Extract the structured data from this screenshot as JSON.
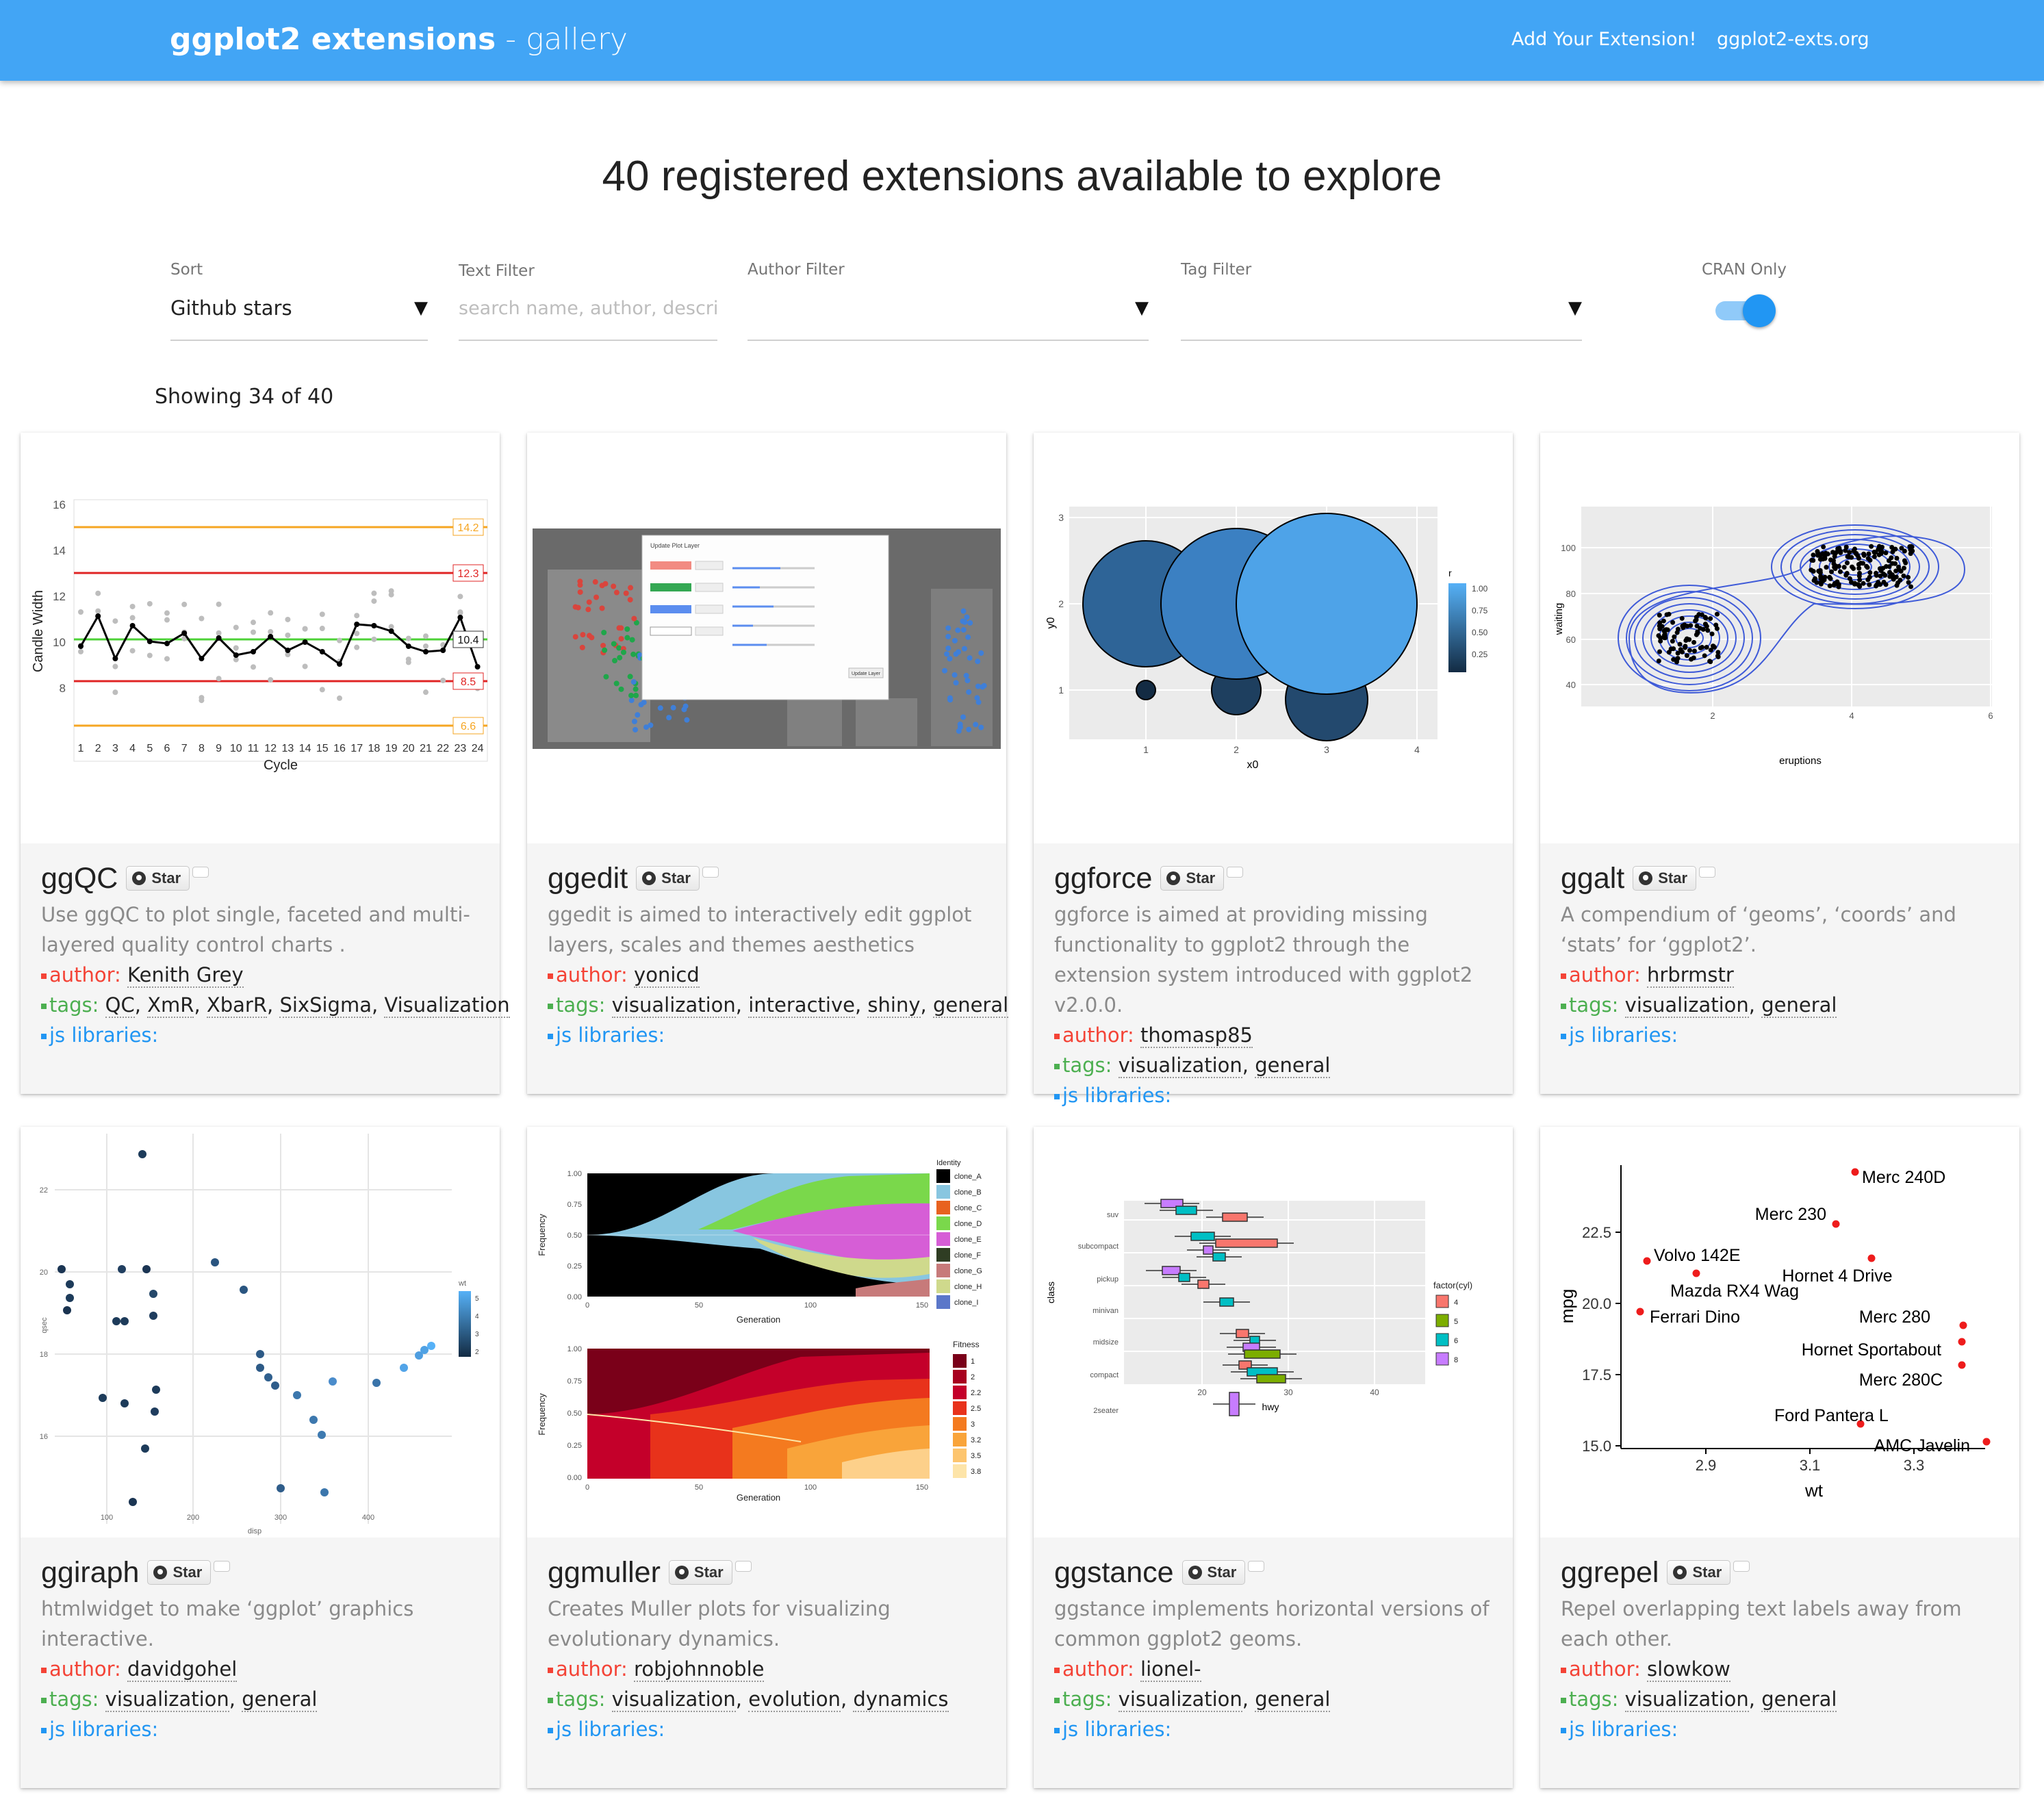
{
  "navbar": {
    "brand_bold": "ggplot2 extensions",
    "brand_sep": " - ",
    "brand_light": "gallery",
    "links": [
      "Add Your Extension!",
      "ggplot2-exts.org"
    ]
  },
  "headline": "40 registered extensions available to explore",
  "filters": {
    "sort": {
      "label": "Sort",
      "value": "Github stars"
    },
    "text": {
      "label": "Text Filter",
      "placeholder": "search name, author, descrip"
    },
    "author": {
      "label": "Author Filter",
      "value": ""
    },
    "tag": {
      "label": "Tag Filter",
      "value": ""
    },
    "cran": {
      "label": "CRAN Only",
      "on": true
    }
  },
  "showing": "Showing 34 of 40",
  "colors": {
    "accent": "#42a5f5",
    "author": "#f44336",
    "tags": "#4caf50",
    "js": "#2196f3"
  },
  "star_label": "Star",
  "cards": [
    {
      "name": "ggQC",
      "desc": "Use ggQC to plot single, faceted and multi-layered quality control charts .",
      "author_label": "author:",
      "author": "Kenith Grey",
      "tags_label": "tags:",
      "tags": [
        "QC",
        "XmR",
        "XbarR",
        "SixSigma",
        "Visualization"
      ],
      "js_label": "js libraries:"
    },
    {
      "name": "ggedit",
      "desc": "ggedit is aimed to interactively edit ggplot layers, scales and themes aesthetics",
      "author_label": "author:",
      "author": "yonicd",
      "tags_label": "tags:",
      "tags": [
        "visualization",
        "interactive",
        "shiny",
        "general"
      ],
      "js_label": "js libraries:"
    },
    {
      "name": "ggforce",
      "desc": "ggforce is aimed at providing missing functionality to ggplot2 through the extension system introduced with ggplot2 v2.0.0.",
      "author_label": "author:",
      "author": "thomasp85",
      "tags_label": "tags:",
      "tags": [
        "visualization",
        "general"
      ],
      "js_label": "js libraries:"
    },
    {
      "name": "ggalt",
      "desc": "A compendium of ‘geoms’, ‘coords’ and ‘stats’ for ‘ggplot2’.",
      "author_label": "author:",
      "author": "hrbrmstr",
      "tags_label": "tags:",
      "tags": [
        "visualization",
        "general"
      ],
      "js_label": "js libraries:"
    },
    {
      "name": "ggiraph",
      "desc": "htmlwidget to make ‘ggplot’ graphics interactive.",
      "author_label": "author:",
      "author": "davidgohel",
      "tags_label": "tags:",
      "tags": [
        "visualization",
        "general"
      ],
      "js_label": "js libraries:"
    },
    {
      "name": "ggmuller",
      "desc": "Creates Muller plots for visualizing evolutionary dynamics.",
      "author_label": "author:",
      "author": "robjohnnoble",
      "tags_label": "tags:",
      "tags": [
        "visualization",
        "evolution",
        "dynamics"
      ],
      "js_label": "js libraries:"
    },
    {
      "name": "ggstance",
      "desc": "ggstance implements horizontal versions of common ggplot2 geoms.",
      "author_label": "author:",
      "author": "lionel-",
      "tags_label": "tags:",
      "tags": [
        "visualization",
        "general"
      ],
      "js_label": "js libraries:"
    },
    {
      "name": "ggrepel",
      "desc": "Repel overlapping text labels away from each other.",
      "author_label": "author:",
      "author": "slowkow",
      "tags_label": "tags:",
      "tags": [
        "visualization",
        "general"
      ],
      "js_label": "js libraries:"
    }
  ],
  "thumbs": {
    "ggqc": {
      "ylabel": "Candle Width",
      "xlabel": "Cycle",
      "yticks": [
        "16",
        "14",
        "12",
        "10",
        "8"
      ],
      "xticks": [
        "1",
        "2",
        "3",
        "4",
        "5",
        "6",
        "7",
        "8",
        "9",
        "10",
        "11",
        "12",
        "13",
        "14",
        "15",
        "16",
        "17",
        "18",
        "19",
        "20",
        "21",
        "22",
        "23",
        "24"
      ],
      "limit_labels": [
        "14.2",
        "12.3",
        "10.4",
        "8.5",
        "6.6"
      ]
    },
    "ggedit": {
      "dialog_title": "Update Plot Layer",
      "button": "Update Layer"
    },
    "ggforce": {
      "ylabel": "y0",
      "xlabel": "x0",
      "yticks": [
        "3",
        "2",
        "1"
      ],
      "xticks": [
        "1",
        "2",
        "3",
        "4"
      ],
      "legend_title": "r",
      "legend_ticks": [
        "1.00",
        "0.75",
        "0.50",
        "0.25"
      ]
    },
    "ggalt": {
      "ylabel": "waiting",
      "xlabel": "eruptions",
      "yticks": [
        "100",
        "80",
        "60",
        "40"
      ],
      "xticks": [
        "2",
        "4",
        "6"
      ]
    },
    "ggiraph": {
      "ylabel": "qsec",
      "xlabel": "disp",
      "yticks": [
        "22",
        "20",
        "18",
        "16"
      ],
      "xticks": [
        "100",
        "200",
        "300",
        "400"
      ],
      "legend_title": "wt",
      "legend_ticks": [
        "5",
        "4",
        "3",
        "2"
      ]
    },
    "ggmuller": {
      "ylabel": "Frequency",
      "xlabel": "Generation",
      "yticks": [
        "1.00",
        "0.75",
        "0.50",
        "0.25",
        "0.00"
      ],
      "xticks": [
        "0",
        "50",
        "100",
        "150"
      ],
      "legend1_title": "Identity",
      "legend1": [
        "clone_A",
        "clone_B",
        "clone_C",
        "clone_D",
        "clone_E",
        "clone_F",
        "clone_G",
        "clone_H",
        "clone_I"
      ],
      "legend2_title": "Fitness",
      "legend2": [
        "1",
        "2",
        "2.2",
        "2.5",
        "3",
        "3.2",
        "3.5",
        "3.8"
      ]
    },
    "ggstance": {
      "ylabel": "class",
      "xlabel": "hwy",
      "yticks": [
        "suv",
        "subcompact",
        "pickup",
        "minivan",
        "midsize",
        "compact",
        "2seater"
      ],
      "xticks": [
        "20",
        "30",
        "40"
      ],
      "legend_title": "factor(cyl)",
      "legend": [
        "4",
        "5",
        "6",
        "8"
      ]
    },
    "ggrepel": {
      "ylabel": "mpg",
      "xlabel": "wt",
      "yticks": [
        "22.5",
        "20.0",
        "17.5",
        "15.0"
      ],
      "xticks": [
        "2.9",
        "3.1",
        "3.3"
      ],
      "labels": [
        "Merc 240D",
        "Merc 230",
        "Volvo 142E",
        "Hornet 4 Drive",
        "Mazda RX4 Wag",
        "Merc 280",
        "Ferrari Dino",
        "Hornet Sportabout",
        "Merc 280C",
        "Ford Pantera L",
        "AMC Javelin"
      ]
    }
  }
}
